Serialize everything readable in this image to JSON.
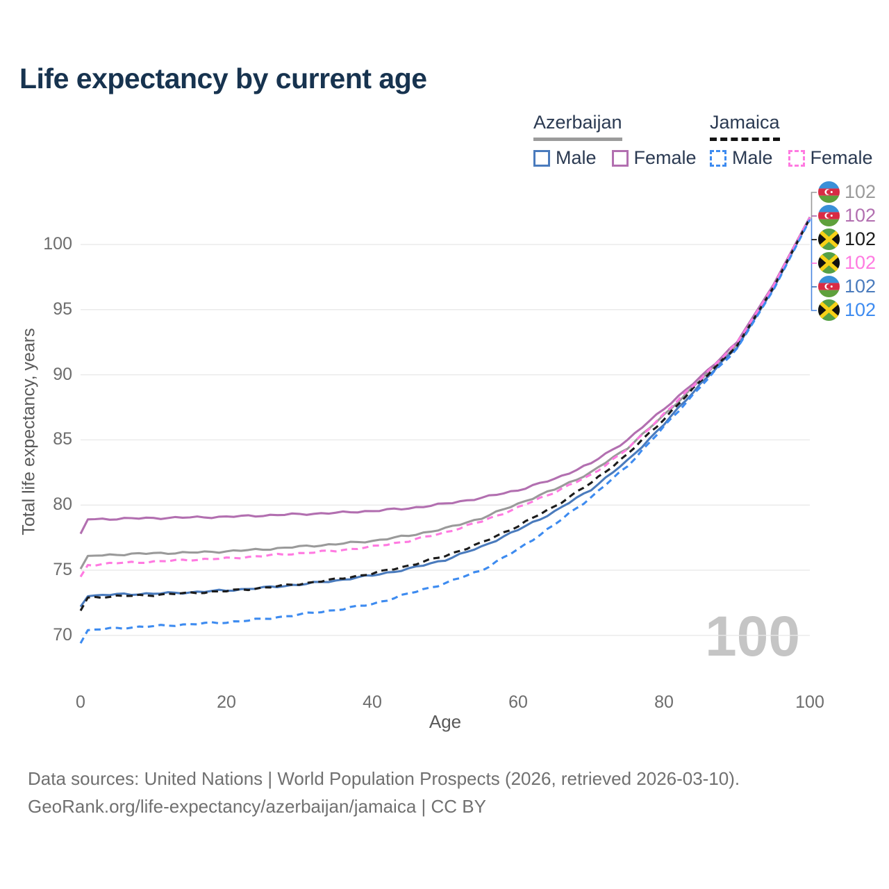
{
  "header": {
    "title": "Life expectancy by current age"
  },
  "legend": {
    "groups": [
      {
        "label": "Azerbaijan",
        "underline_style": "solid",
        "underline_color": "#9b9b9b",
        "items": [
          {
            "label": "Male",
            "color": "#4a7bbd",
            "style": "solid"
          },
          {
            "label": "Female",
            "color": "#b26fb0",
            "style": "solid"
          }
        ]
      },
      {
        "label": "Jamaica",
        "underline_style": "dashed",
        "underline_color": "#141414",
        "items": [
          {
            "label": "Male",
            "color": "#3d8bf0",
            "style": "dashed"
          },
          {
            "label": "Female",
            "color": "#ff7ae1",
            "style": "dashed"
          }
        ]
      }
    ]
  },
  "chart_data": {
    "type": "line",
    "title": "Life expectancy by current age",
    "xlabel": "Age",
    "ylabel": "Total life expectancy, years",
    "xlim": [
      0,
      100
    ],
    "ylim": [
      66,
      105
    ],
    "xticks": [
      0,
      20,
      40,
      60,
      80,
      100
    ],
    "yticks": [
      70,
      75,
      80,
      85,
      90,
      95,
      100
    ],
    "grid": "horizontal",
    "legend_position": "top-right",
    "age_indicator": "100",
    "series": [
      {
        "name": "Azerbaijan — Both sexes",
        "country": "Azerbaijan",
        "sex": "both",
        "color": "#9a9a9a",
        "dash": "solid",
        "end_label": "102",
        "points": [
          [
            0,
            75.1
          ],
          [
            1,
            76.1
          ],
          [
            5,
            76.2
          ],
          [
            10,
            76.3
          ],
          [
            15,
            76.35
          ],
          [
            20,
            76.45
          ],
          [
            25,
            76.6
          ],
          [
            30,
            76.8
          ],
          [
            35,
            77.0
          ],
          [
            40,
            77.25
          ],
          [
            45,
            77.65
          ],
          [
            50,
            78.2
          ],
          [
            55,
            79.0
          ],
          [
            60,
            80.1
          ],
          [
            65,
            81.2
          ],
          [
            70,
            82.5
          ],
          [
            75,
            84.4
          ],
          [
            80,
            86.9
          ],
          [
            85,
            89.6
          ],
          [
            90,
            92.3
          ],
          [
            95,
            96.8
          ],
          [
            100,
            102.0
          ]
        ]
      },
      {
        "name": "Azerbaijan — Female",
        "country": "Azerbaijan",
        "sex": "female",
        "color": "#b26fb0",
        "dash": "solid",
        "end_label": "102",
        "points": [
          [
            0,
            77.8
          ],
          [
            1,
            78.9
          ],
          [
            5,
            78.95
          ],
          [
            10,
            79.0
          ],
          [
            15,
            79.05
          ],
          [
            20,
            79.1
          ],
          [
            25,
            79.2
          ],
          [
            30,
            79.3
          ],
          [
            35,
            79.4
          ],
          [
            40,
            79.55
          ],
          [
            45,
            79.75
          ],
          [
            50,
            80.1
          ],
          [
            55,
            80.55
          ],
          [
            60,
            81.15
          ],
          [
            65,
            82.0
          ],
          [
            70,
            83.2
          ],
          [
            75,
            85.0
          ],
          [
            80,
            87.4
          ],
          [
            85,
            89.8
          ],
          [
            90,
            92.5
          ],
          [
            95,
            96.9
          ],
          [
            100,
            102.1
          ]
        ]
      },
      {
        "name": "Jamaica — Both sexes",
        "country": "Jamaica",
        "sex": "both",
        "color": "#1b1b1b",
        "dash": "dashed",
        "end_label": "102",
        "points": [
          [
            0,
            71.9
          ],
          [
            1,
            72.9
          ],
          [
            5,
            73.0
          ],
          [
            10,
            73.1
          ],
          [
            15,
            73.25
          ],
          [
            20,
            73.4
          ],
          [
            25,
            73.65
          ],
          [
            30,
            73.95
          ],
          [
            35,
            74.3
          ],
          [
            40,
            74.75
          ],
          [
            45,
            75.35
          ],
          [
            50,
            76.1
          ],
          [
            55,
            77.1
          ],
          [
            60,
            78.4
          ],
          [
            65,
            79.9
          ],
          [
            70,
            81.7
          ],
          [
            75,
            83.9
          ],
          [
            80,
            86.6
          ],
          [
            85,
            89.5
          ],
          [
            90,
            92.2
          ],
          [
            95,
            96.7
          ],
          [
            100,
            102.0
          ]
        ]
      },
      {
        "name": "Jamaica — Female",
        "country": "Jamaica",
        "sex": "female",
        "color": "#ff7ae1",
        "dash": "dashed",
        "end_label": "102",
        "points": [
          [
            0,
            74.5
          ],
          [
            1,
            75.4
          ],
          [
            5,
            75.55
          ],
          [
            10,
            75.65
          ],
          [
            15,
            75.8
          ],
          [
            20,
            75.9
          ],
          [
            25,
            76.1
          ],
          [
            30,
            76.3
          ],
          [
            35,
            76.5
          ],
          [
            40,
            76.8
          ],
          [
            45,
            77.25
          ],
          [
            50,
            77.9
          ],
          [
            55,
            78.75
          ],
          [
            60,
            79.8
          ],
          [
            65,
            81.0
          ],
          [
            70,
            82.3
          ],
          [
            75,
            84.3
          ],
          [
            80,
            87.0
          ],
          [
            85,
            89.7
          ],
          [
            90,
            92.4
          ],
          [
            95,
            96.8
          ],
          [
            100,
            102.05
          ]
        ]
      },
      {
        "name": "Azerbaijan — Male",
        "country": "Azerbaijan",
        "sex": "male",
        "color": "#4a7bbd",
        "dash": "solid",
        "end_label": "102",
        "points": [
          [
            0,
            72.2
          ],
          [
            1,
            73.0
          ],
          [
            5,
            73.15
          ],
          [
            10,
            73.2
          ],
          [
            15,
            73.3
          ],
          [
            20,
            73.45
          ],
          [
            25,
            73.65
          ],
          [
            30,
            73.9
          ],
          [
            35,
            74.2
          ],
          [
            40,
            74.6
          ],
          [
            45,
            75.1
          ],
          [
            50,
            75.8
          ],
          [
            55,
            76.8
          ],
          [
            60,
            78.1
          ],
          [
            65,
            79.5
          ],
          [
            70,
            81.2
          ],
          [
            75,
            83.4
          ],
          [
            80,
            86.2
          ],
          [
            85,
            89.3
          ],
          [
            90,
            92.1
          ],
          [
            95,
            96.6
          ],
          [
            100,
            102.0
          ]
        ]
      },
      {
        "name": "Jamaica — Male",
        "country": "Jamaica",
        "sex": "male",
        "color": "#3d8bf0",
        "dash": "dashed",
        "end_label": "102",
        "points": [
          [
            0,
            69.4
          ],
          [
            1,
            70.4
          ],
          [
            5,
            70.55
          ],
          [
            10,
            70.7
          ],
          [
            15,
            70.85
          ],
          [
            20,
            71.0
          ],
          [
            25,
            71.25
          ],
          [
            30,
            71.6
          ],
          [
            35,
            71.95
          ],
          [
            40,
            72.4
          ],
          [
            45,
            73.2
          ],
          [
            50,
            74.0
          ],
          [
            55,
            75.0
          ],
          [
            60,
            76.6
          ],
          [
            65,
            78.5
          ],
          [
            70,
            80.6
          ],
          [
            75,
            83.0
          ],
          [
            80,
            86.0
          ],
          [
            85,
            89.1
          ],
          [
            90,
            92.0
          ],
          [
            95,
            96.5
          ],
          [
            100,
            101.9
          ]
        ]
      }
    ]
  },
  "footer": {
    "line1": "Data sources: United Nations | World Population Prospects (2026, retrieved 2026-03-10).",
    "line2": "GeoRank.org/life-expectancy/azerbaijan/jamaica | CC BY"
  }
}
